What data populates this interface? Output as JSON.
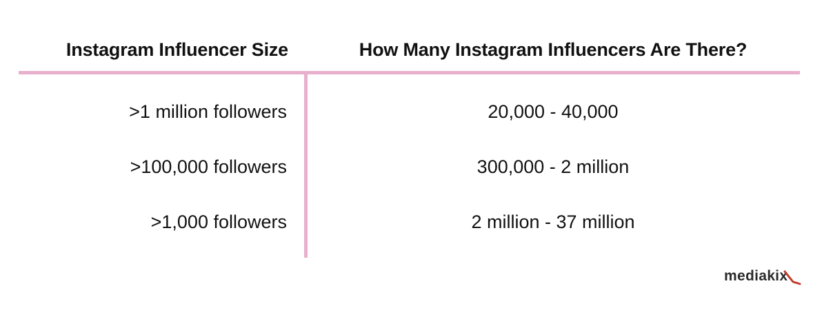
{
  "colors": {
    "accent": "#e8b0cc",
    "logo_accent": "#c0392b",
    "text": "#111111"
  },
  "chart_data": {
    "type": "table",
    "columns": [
      "Instagram Influencer Size",
      "How Many Instagram Influencers Are There?"
    ],
    "rows": [
      [
        ">1 million followers",
        "20,000 - 40,000"
      ],
      [
        ">100,000 followers",
        "300,000 - 2 million"
      ],
      [
        ">1,000 followers",
        "2 million - 37 million"
      ]
    ]
  },
  "brand": {
    "name": "mediakix",
    "part1": "media",
    "part2": "kix"
  }
}
